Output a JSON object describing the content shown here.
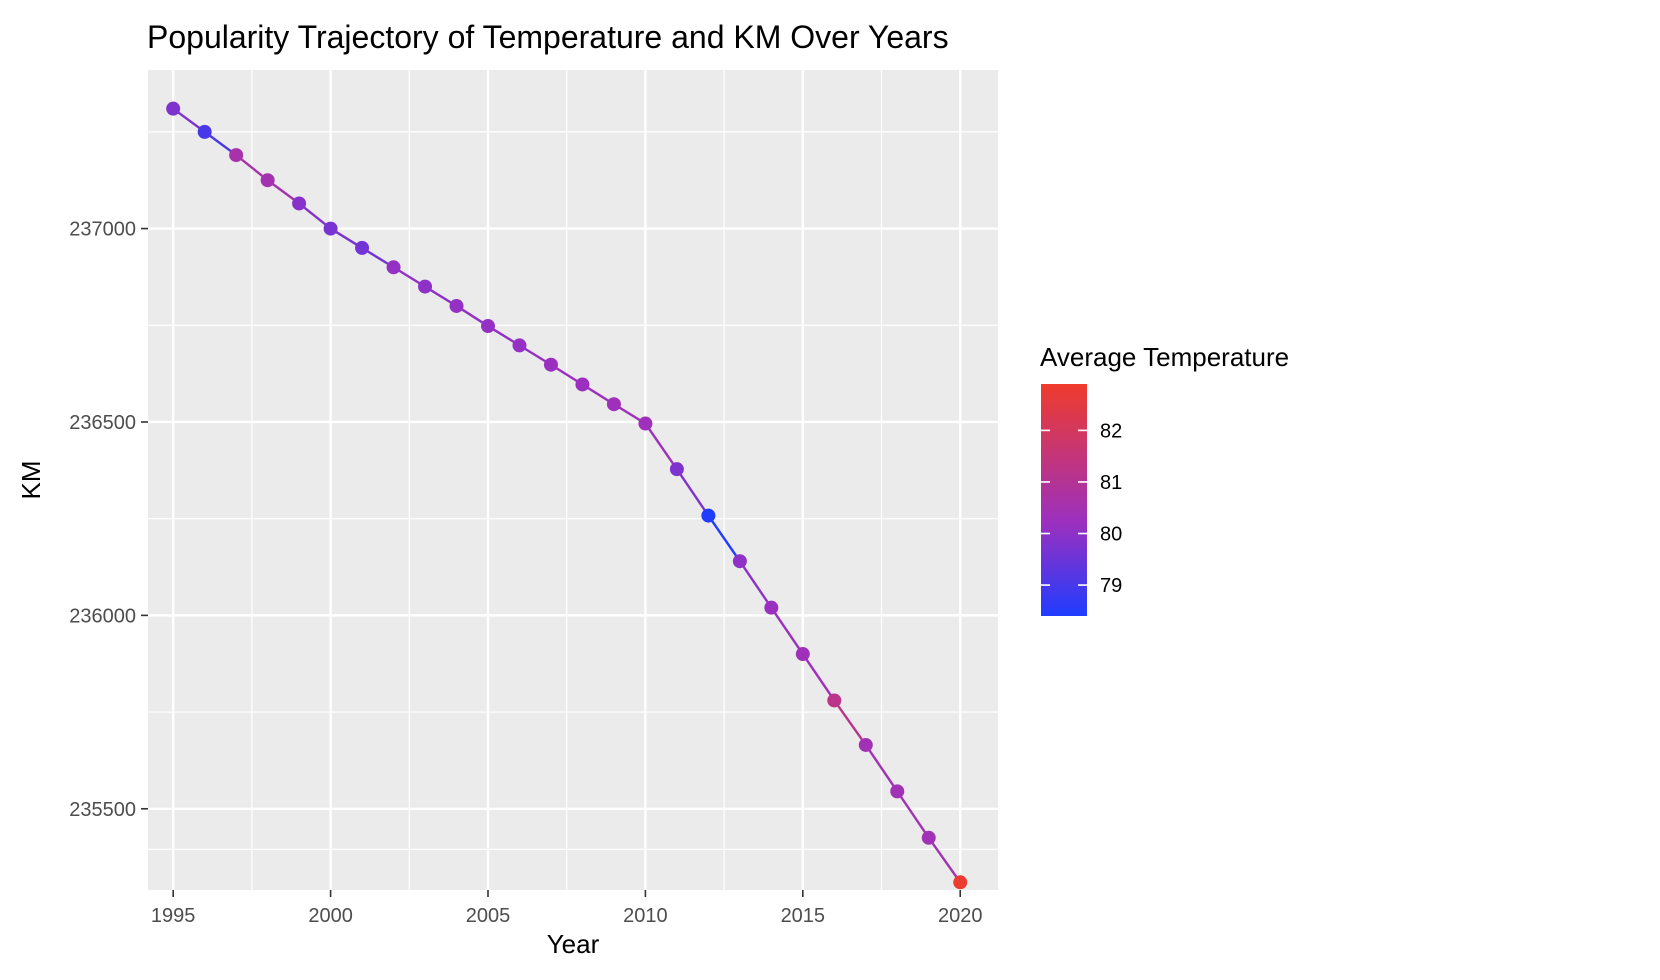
{
  "chart_data": {
    "type": "line",
    "title": "Popularity Trajectory of Temperature and KM Over Years",
    "xlabel": "Year",
    "ylabel": "KM",
    "xlim": [
      1994.2,
      2021.2
    ],
    "ylim": [
      235290,
      237410
    ],
    "x_ticks": [
      1995,
      2000,
      2005,
      2010,
      2015,
      2020
    ],
    "y_ticks": [
      235500,
      236000,
      236500,
      237000
    ],
    "x_tick_labels": [
      "1995",
      "2000",
      "2005",
      "2010",
      "2015",
      "2020"
    ],
    "y_tick_labels": [
      "235500",
      "236000",
      "236500",
      "237000"
    ],
    "grid": true,
    "series": [
      {
        "x": [
          1995,
          1996,
          1997,
          1998,
          1999,
          2000,
          2001,
          2002,
          2003,
          2004,
          2005,
          2006,
          2007,
          2008,
          2009,
          2010,
          2011,
          2012,
          2013,
          2014,
          2015,
          2016,
          2017,
          2018,
          2019,
          2020
        ],
        "y": [
          237310,
          237250,
          237190,
          237125,
          237065,
          237000,
          236950,
          236900,
          236850,
          236800,
          236748,
          236698,
          236648,
          236597,
          236546,
          236496,
          236378,
          236258,
          236140,
          236020,
          235900,
          235780,
          235665,
          235545,
          235425,
          235310
        ],
        "color_values": [
          79.8,
          79.0,
          80.6,
          80.5,
          79.9,
          79.7,
          79.6,
          80.1,
          80.0,
          80.1,
          80.1,
          80.1,
          80.2,
          80.2,
          80.3,
          80.3,
          79.8,
          78.4,
          80.0,
          80.2,
          80.3,
          81.2,
          80.4,
          80.4,
          80.4,
          82.8
        ]
      }
    ],
    "legend": {
      "title": "Average Temperature",
      "position": "right",
      "range": [
        78.4,
        82.9
      ],
      "ticks": [
        79,
        80,
        81,
        82
      ],
      "tick_labels": [
        "79",
        "80",
        "81",
        "82"
      ],
      "low_color": "#1f3cff",
      "mid_color": "#9b30c0",
      "high_color": "#ef3b2c"
    },
    "colors": {
      "panel": "#ebebeb",
      "grid_major": "#ffffff",
      "tick_text": "#4d4d4d"
    }
  }
}
